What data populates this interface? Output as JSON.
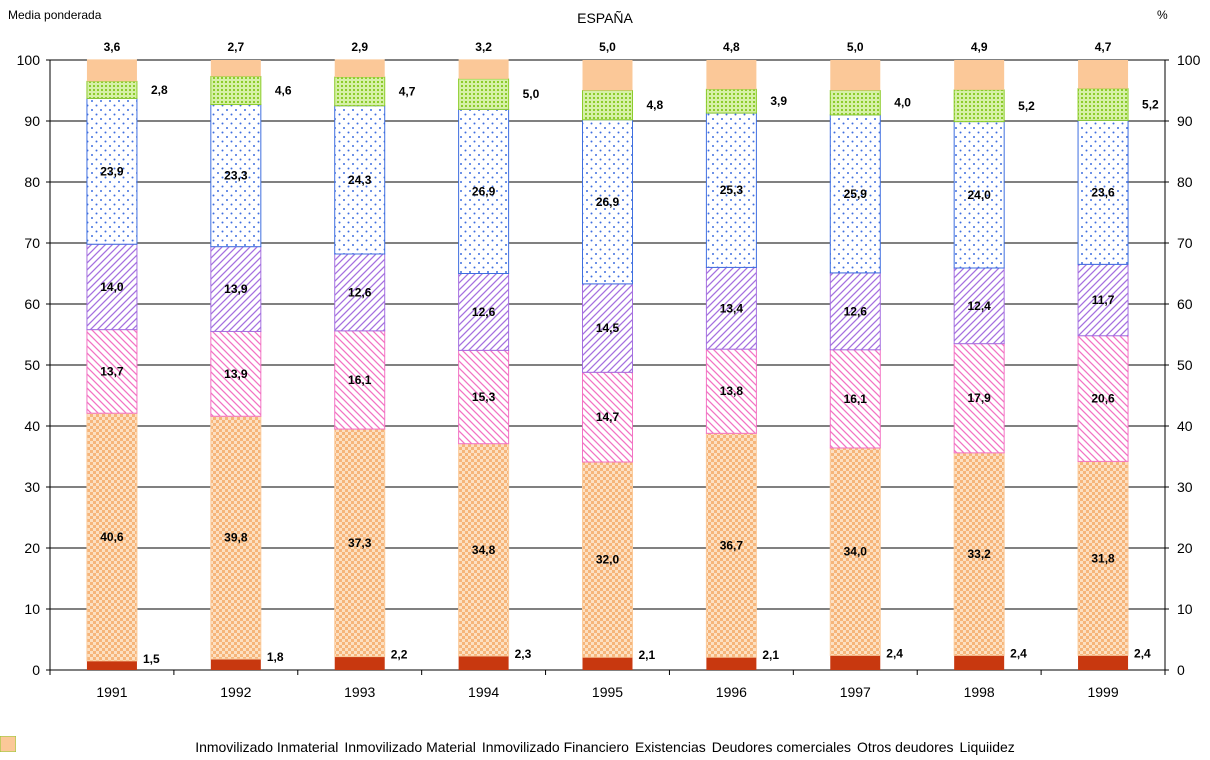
{
  "header": {
    "left_label": "Media ponderada",
    "title": "ESPAÑA",
    "unit": "%"
  },
  "chart_data": {
    "type": "bar",
    "stacked": true,
    "title": "ESPAÑA",
    "ylim": [
      0,
      100
    ],
    "y_ticks": [
      "0",
      "10",
      "20",
      "30",
      "40",
      "50",
      "60",
      "70",
      "80",
      "90",
      "100"
    ],
    "categories": [
      "1991",
      "1992",
      "1993",
      "1994",
      "1995",
      "1996",
      "1997",
      "1998",
      "1999"
    ],
    "series": [
      {
        "name": "Inmovilizado Inmaterial",
        "color": "#c8380f",
        "pattern": "solid",
        "values": [
          1.5,
          1.8,
          2.2,
          2.3,
          2.1,
          2.1,
          2.4,
          2.4,
          2.4
        ],
        "labels": [
          "1,5",
          "1,8",
          "2,2",
          "2,3",
          "2,1",
          "2,1",
          "2,4",
          "2,4",
          "2,4"
        ]
      },
      {
        "name": "Inmovilizado Material",
        "color": "#fbcb9b",
        "pattern": "checks",
        "values": [
          40.6,
          39.8,
          37.3,
          34.8,
          32.0,
          36.7,
          34.0,
          33.2,
          31.8
        ],
        "labels": [
          "40,6",
          "39,8",
          "37,3",
          "34,8",
          "32,0",
          "36,7",
          "34,0",
          "33,2",
          "31,8"
        ]
      },
      {
        "name": "Inmovilizado Financiero",
        "color": "#f373c4",
        "pattern": "diag-down",
        "values": [
          13.7,
          13.9,
          16.1,
          15.3,
          14.7,
          13.8,
          16.1,
          17.9,
          20.6
        ],
        "labels": [
          "13,7",
          "13,9",
          "16,1",
          "15,3",
          "14,7",
          "13,8",
          "16,1",
          "17,9",
          "20,6"
        ]
      },
      {
        "name": "Existencias",
        "color": "#a570e0",
        "pattern": "diag-up",
        "values": [
          14.0,
          13.9,
          12.6,
          12.6,
          14.5,
          13.4,
          12.6,
          12.4,
          11.7
        ],
        "labels": [
          "14,0",
          "13,9",
          "12,6",
          "12,6",
          "14,5",
          "13,4",
          "12,6",
          "12,4",
          "11,7"
        ]
      },
      {
        "name": "Deudores comerciales",
        "color": "#3f6fe0",
        "pattern": "dots",
        "values": [
          23.9,
          23.3,
          24.3,
          26.9,
          26.9,
          25.3,
          25.9,
          24.0,
          23.6
        ],
        "labels": [
          "23,9",
          "23,3",
          "24,3",
          "26,9",
          "26,9",
          "25,3",
          "25,9",
          "24,0",
          "23,6"
        ]
      },
      {
        "name": "Otros deudores",
        "color": "#8ccc2c",
        "pattern": "grid",
        "values": [
          2.8,
          4.6,
          4.7,
          5.0,
          4.8,
          3.9,
          4.0,
          5.2,
          5.2
        ],
        "labels": [
          "2,8",
          "4,6",
          "4,7",
          "5,0",
          "4,8",
          "3,9",
          "4,0",
          "5,2",
          "5,2"
        ]
      },
      {
        "name": "Liquiidez",
        "color": "#fbc898",
        "pattern": "solid",
        "values": [
          3.6,
          2.7,
          2.9,
          3.2,
          5.0,
          4.8,
          5.0,
          4.9,
          4.7
        ],
        "labels": [
          "3,6",
          "2,7",
          "2,9",
          "3,2",
          "5,0",
          "4,8",
          "5,0",
          "4,9",
          "4,7"
        ]
      }
    ],
    "grid": true,
    "legend_position": "bottom"
  }
}
